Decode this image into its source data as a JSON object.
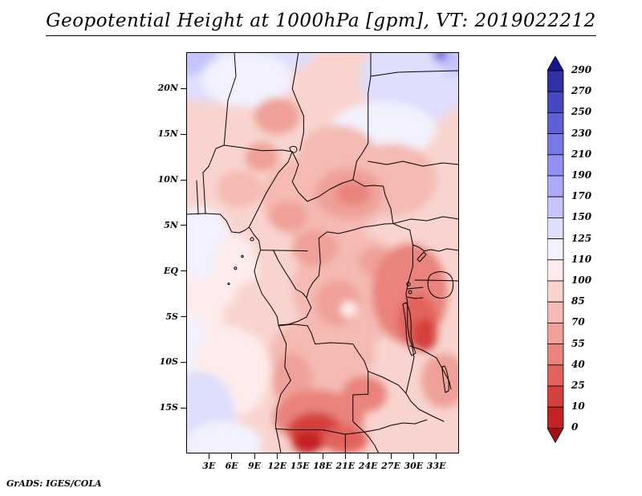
{
  "title": "Geopotential Height at 1000hPa [gpm], VT: 2019022212",
  "footer": "GrADS: IGES/COLA",
  "chart_data": {
    "type": "heatmap",
    "title": "Geopotential Height at 1000hPa [gpm]",
    "variable": "Geopotential Height",
    "pressure_level": "1000hPa",
    "units": "gpm",
    "valid_time": "2019022212",
    "legend_position": "right",
    "grid": false,
    "lon_range": [
      0,
      36
    ],
    "lat_range": [
      -20,
      24
    ],
    "lat_ticks": [
      {
        "label": "20N",
        "lat": 20
      },
      {
        "label": "15N",
        "lat": 15
      },
      {
        "label": "10N",
        "lat": 10
      },
      {
        "label": "5N",
        "lat": 5
      },
      {
        "label": "EQ",
        "lat": 0
      },
      {
        "label": "5S",
        "lat": -5
      },
      {
        "label": "10S",
        "lat": -10
      },
      {
        "label": "15S",
        "lat": -15
      }
    ],
    "lon_ticks": [
      {
        "label": "3E",
        "lon": 3
      },
      {
        "label": "6E",
        "lon": 6
      },
      {
        "label": "9E",
        "lon": 9
      },
      {
        "label": "12E",
        "lon": 12
      },
      {
        "label": "15E",
        "lon": 15
      },
      {
        "label": "18E",
        "lon": 18
      },
      {
        "label": "21E",
        "lon": 21
      },
      {
        "label": "24E",
        "lon": 24
      },
      {
        "label": "27E",
        "lon": 27
      },
      {
        "label": "30E",
        "lon": 30
      },
      {
        "label": "33E",
        "lon": 33
      }
    ],
    "colorbar": {
      "levels_top_to_bottom": [
        290,
        270,
        250,
        230,
        210,
        190,
        170,
        150,
        125,
        110,
        100,
        85,
        70,
        55,
        40,
        25,
        10,
        0
      ],
      "labels_top_to_bottom": [
        "290",
        "270",
        "250",
        "230",
        "210",
        "190",
        "170",
        "150",
        "125",
        "110",
        "100",
        "85",
        "70",
        "55",
        "40",
        "25",
        "10",
        "0"
      ],
      "colors_top_to_bottom": [
        "#16168e",
        "#3030aa",
        "#4747c3",
        "#5f5fd8",
        "#7878e8",
        "#9191f2",
        "#abaaf8",
        "#c5c5fb",
        "#dedefd",
        "#f2f2fe",
        "#fdeceb",
        "#f9d4cf",
        "#f4bab3",
        "#efa098",
        "#e9837c",
        "#e2635c",
        "#d4403c",
        "#c22424",
        "#a31010"
      ]
    },
    "background_value": 90,
    "field_regions": [
      {
        "lon": 3,
        "lat": 23,
        "rx": 7,
        "ry": 4.5,
        "value": 130
      },
      {
        "lon": 0.5,
        "lat": 24,
        "rx": 3.5,
        "ry": 2.5,
        "value": 158
      },
      {
        "lon": 13,
        "lat": 24,
        "rx": 4,
        "ry": 2,
        "value": 128
      },
      {
        "lon": 8,
        "lat": 21,
        "rx": 6,
        "ry": 3,
        "value": 115
      },
      {
        "lon": 30,
        "lat": 21,
        "rx": 7,
        "ry": 5,
        "value": 130
      },
      {
        "lon": 35.5,
        "lat": 23.5,
        "rx": 2.5,
        "ry": 2,
        "value": 160
      },
      {
        "lon": 26,
        "lat": 15.5,
        "rx": 7,
        "ry": 3,
        "value": 115
      },
      {
        "lon": 1.5,
        "lat": -3,
        "rx": 3.5,
        "ry": 10,
        "value": 105
      },
      {
        "lon": 2,
        "lat": 3,
        "rx": 4,
        "ry": 4,
        "value": 110
      },
      {
        "lon": 6.5,
        "lat": 0,
        "rx": 3,
        "ry": 4,
        "value": 100
      },
      {
        "lon": 0.5,
        "lat": -10,
        "rx": 3,
        "ry": 5,
        "value": 118
      },
      {
        "lon": 6,
        "lat": -11,
        "rx": 5,
        "ry": 5,
        "value": 108
      },
      {
        "lon": 1.5,
        "lat": -16,
        "rx": 5,
        "ry": 5,
        "value": 130
      },
      {
        "lon": 5,
        "lat": -19,
        "rx": 5,
        "ry": 2.5,
        "value": 122
      },
      {
        "lon": 18,
        "lat": 8,
        "rx": 8,
        "ry": 5,
        "value": 78
      },
      {
        "lon": 27,
        "lat": 10,
        "rx": 6,
        "ry": 4,
        "value": 80
      },
      {
        "lon": 22,
        "lat": -2,
        "rx": 8,
        "ry": 6,
        "value": 76
      },
      {
        "lon": 18,
        "lat": -9,
        "rx": 7,
        "ry": 4,
        "value": 72
      },
      {
        "lon": 7,
        "lat": 9,
        "rx": 3,
        "ry": 2,
        "value": 80
      },
      {
        "lon": 9,
        "lat": -4,
        "rx": 3,
        "ry": 3,
        "value": 88
      },
      {
        "lon": 20,
        "lat": 13,
        "rx": 5,
        "ry": 3,
        "value": 72
      },
      {
        "lon": 12,
        "lat": 17,
        "rx": 3,
        "ry": 2,
        "value": 60
      },
      {
        "lon": 10,
        "lat": 12.5,
        "rx": 2.2,
        "ry": 1.6,
        "value": 62
      },
      {
        "lon": 21.5,
        "lat": 8.5,
        "rx": 4.5,
        "ry": 2.8,
        "value": 55
      },
      {
        "lon": 22,
        "lat": 8.5,
        "rx": 2.2,
        "ry": 1.3,
        "value": 45
      },
      {
        "lon": 13.5,
        "lat": 6,
        "rx": 2.6,
        "ry": 1.6,
        "value": 60
      },
      {
        "lon": 17,
        "lat": 2.5,
        "rx": 3,
        "ry": 2,
        "value": 66
      },
      {
        "lon": 25,
        "lat": 1,
        "rx": 2.2,
        "ry": 1.6,
        "value": 58
      },
      {
        "lon": 29.5,
        "lat": -2.5,
        "rx": 5,
        "ry": 5.5,
        "value": 48
      },
      {
        "lon": 30.5,
        "lat": -5.5,
        "rx": 2.6,
        "ry": 3,
        "value": 32
      },
      {
        "lon": 31.5,
        "lat": -7,
        "rx": 1.6,
        "ry": 1.8,
        "value": 22
      },
      {
        "lon": 20,
        "lat": -3.5,
        "rx": 3,
        "ry": 2.5,
        "value": 60
      },
      {
        "lon": 14,
        "lat": -12,
        "rx": 2.6,
        "ry": 3,
        "value": 60
      },
      {
        "lon": 23.5,
        "lat": -13.5,
        "rx": 3,
        "ry": 2,
        "value": 52
      },
      {
        "lon": 34,
        "lat": -12,
        "rx": 3,
        "ry": 3,
        "value": 62
      },
      {
        "lon": 17.5,
        "lat": -16,
        "rx": 6,
        "ry": 3,
        "value": 45
      },
      {
        "lon": 17,
        "lat": -17.5,
        "rx": 3.6,
        "ry": 2,
        "value": 22
      },
      {
        "lon": 16,
        "lat": -18.8,
        "rx": 2,
        "ry": 1.2,
        "value": 8
      },
      {
        "lon": 21,
        "lat": -18.5,
        "rx": 3,
        "ry": 1.5,
        "value": 35
      },
      {
        "lon": 33.5,
        "lat": 23.7,
        "rx": 1,
        "ry": 0.6,
        "value": 240
      },
      {
        "lon": 21.5,
        "lat": -4.2,
        "rx": 1.1,
        "ry": 0.9,
        "value": 100
      }
    ]
  }
}
